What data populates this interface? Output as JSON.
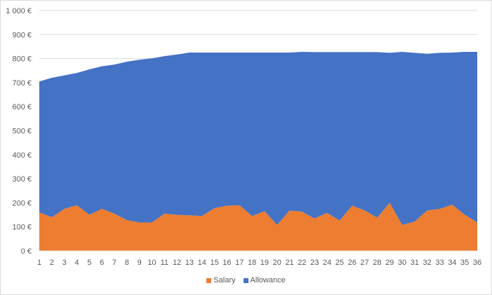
{
  "chart_data": {
    "type": "area",
    "stacked": true,
    "x": [
      1,
      2,
      3,
      4,
      5,
      6,
      7,
      8,
      9,
      10,
      11,
      12,
      13,
      14,
      15,
      16,
      17,
      18,
      19,
      20,
      21,
      22,
      23,
      24,
      25,
      26,
      27,
      28,
      29,
      30,
      31,
      32,
      33,
      34,
      35,
      36
    ],
    "series": [
      {
        "name": "Salary",
        "color": "#ED7D31",
        "values": [
          160,
          140,
          175,
          190,
          150,
          175,
          155,
          128,
          118,
          118,
          155,
          150,
          148,
          145,
          178,
          188,
          190,
          145,
          165,
          108,
          168,
          163,
          135,
          158,
          126,
          188,
          168,
          138,
          200,
          108,
          122,
          168,
          175,
          192,
          150,
          118
        ]
      },
      {
        "name": "Allowance",
        "color": "#4472C4",
        "values": [
          545,
          580,
          555,
          550,
          605,
          593,
          620,
          659,
          677,
          683,
          655,
          667,
          677,
          680,
          647,
          637,
          635,
          680,
          660,
          717,
          657,
          665,
          692,
          669,
          701,
          639,
          659,
          689,
          624,
          720,
          702,
          652,
          649,
          633,
          678,
          710
        ]
      }
    ],
    "y_ticks": [
      "0 €",
      "100 €",
      "200 €",
      "300 €",
      "400 €",
      "500 €",
      "600 €",
      "700 €",
      "800 €",
      "900 €",
      "1 000 €"
    ],
    "ylim": [
      0,
      1000
    ],
    "grid": true,
    "legend_position": "bottom"
  }
}
